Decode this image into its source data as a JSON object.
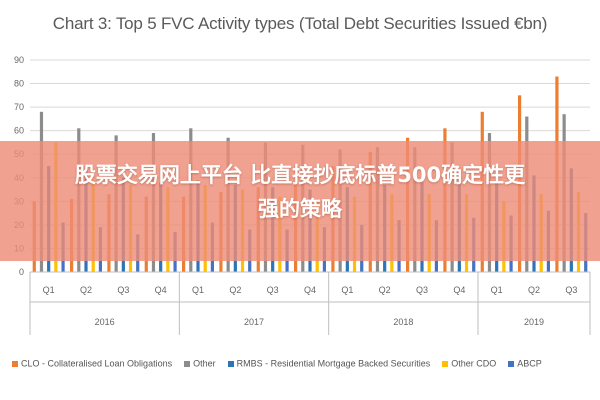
{
  "overlay": {
    "line1": "股票交易网上平台 比直接抄底标普500确定性更",
    "line2": "强的策略"
  },
  "chart_data": {
    "type": "bar",
    "title": "Chart 3: Top 5 FVC Activity types (Total Debt Securities Issued €bn)",
    "xlabel": "",
    "ylabel": "",
    "ylim": [
      0,
      90
    ],
    "yticks": [
      0,
      10,
      20,
      30,
      40,
      50,
      60,
      70,
      80,
      90
    ],
    "grid": true,
    "legend_position": "bottom",
    "categories": [
      "Q1",
      "Q2",
      "Q3",
      "Q4",
      "Q1",
      "Q2",
      "Q3",
      "Q4",
      "Q1",
      "Q2",
      "Q3",
      "Q4",
      "Q1",
      "Q2",
      "Q3"
    ],
    "groups": [
      {
        "label": "2016",
        "count": 4
      },
      {
        "label": "2017",
        "count": 4
      },
      {
        "label": "2018",
        "count": 4
      },
      {
        "label": "2019",
        "count": 3
      }
    ],
    "series": [
      {
        "name": "CLO - Collateralised Loan Obligations",
        "color": "#ed7d31",
        "values": [
          30,
          31,
          33,
          32,
          32,
          34,
          36,
          37,
          45,
          51,
          57,
          61,
          68,
          75,
          83
        ]
      },
      {
        "name": "Other",
        "color": "#8c8c8c",
        "values": [
          68,
          61,
          58,
          59,
          61,
          57,
          55,
          54,
          52,
          53,
          53,
          55,
          59,
          66,
          67
        ]
      },
      {
        "name": "RMBS - Residential Mortgage Backed Securities",
        "color": "#2e75b6",
        "values": [
          45,
          44,
          40,
          38,
          39,
          37,
          36,
          35,
          36,
          37,
          38,
          40,
          39,
          41,
          44
        ]
      },
      {
        "name": "Other CDO",
        "color": "#ffc000",
        "values": [
          55,
          39,
          37,
          36,
          37,
          35,
          32,
          31,
          32,
          33,
          33,
          33,
          30,
          33,
          34
        ]
      },
      {
        "name": "ABCP",
        "color": "#4472c4",
        "values": [
          21,
          19,
          16,
          17,
          21,
          18,
          18,
          19,
          20,
          22,
          22,
          23,
          24,
          26,
          25
        ]
      }
    ]
  }
}
